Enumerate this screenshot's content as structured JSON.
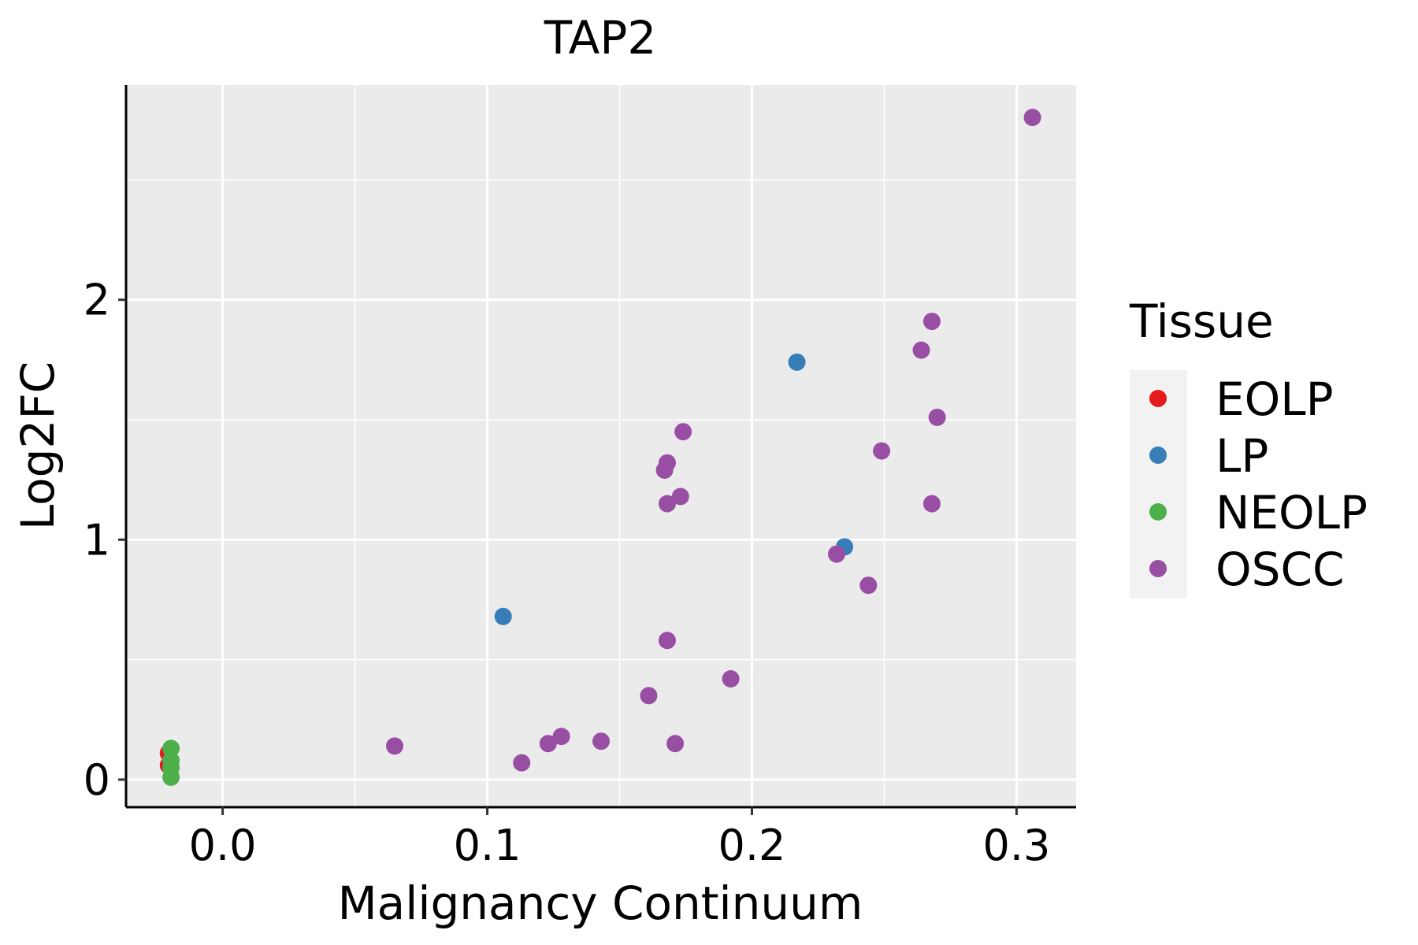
{
  "chart_data": {
    "type": "scatter",
    "title": "TAP2",
    "xlabel": "Malignancy Continuum",
    "ylabel": "Log2FC",
    "xlim": [
      -0.0365,
      0.3225
    ],
    "ylim": [
      -0.115,
      2.895
    ],
    "x_ticks": [
      0.0,
      0.1,
      0.2,
      0.3
    ],
    "x_tick_labels": [
      "0.0",
      "0.1",
      "0.2",
      "0.3"
    ],
    "x_minor": [
      0.05,
      0.15,
      0.25
    ],
    "y_ticks": [
      0,
      1,
      2
    ],
    "y_tick_labels": [
      "0",
      "1",
      "2"
    ],
    "y_minor": [
      0.5,
      1.5,
      2.5
    ],
    "grid": true,
    "background": "#EBEBEB",
    "legend": {
      "title": "Tissue",
      "placement": "right",
      "entries": [
        {
          "label": "EOLP",
          "color": "#E41A1C"
        },
        {
          "label": "LP",
          "color": "#377EB8"
        },
        {
          "label": "NEOLP",
          "color": "#4DAF4A"
        },
        {
          "label": "OSCC",
          "color": "#984EA3"
        }
      ]
    },
    "series": [
      {
        "name": "EOLP",
        "color": "#E41A1C",
        "points": [
          [
            -0.0205,
            0.11
          ],
          [
            -0.0205,
            0.06
          ]
        ]
      },
      {
        "name": "LP",
        "color": "#377EB8",
        "points": [
          [
            0.106,
            0.68
          ],
          [
            0.217,
            1.74
          ],
          [
            0.235,
            0.97
          ]
        ]
      },
      {
        "name": "NEOLP",
        "color": "#4DAF4A",
        "points": [
          [
            -0.0195,
            0.13
          ],
          [
            -0.0195,
            0.08
          ],
          [
            -0.0195,
            0.05
          ],
          [
            -0.0195,
            0.01
          ]
        ]
      },
      {
        "name": "OSCC",
        "color": "#984EA3",
        "points": [
          [
            0.065,
            0.14
          ],
          [
            0.113,
            0.07
          ],
          [
            0.123,
            0.15
          ],
          [
            0.128,
            0.18
          ],
          [
            0.143,
            0.16
          ],
          [
            0.161,
            0.35
          ],
          [
            0.168,
            0.58
          ],
          [
            0.171,
            0.15
          ],
          [
            0.192,
            0.42
          ],
          [
            0.167,
            1.29
          ],
          [
            0.168,
            1.32
          ],
          [
            0.168,
            1.15
          ],
          [
            0.173,
            1.18
          ],
          [
            0.174,
            1.45
          ],
          [
            0.232,
            0.94
          ],
          [
            0.244,
            0.81
          ],
          [
            0.249,
            1.37
          ],
          [
            0.264,
            1.79
          ],
          [
            0.268,
            1.91
          ],
          [
            0.268,
            1.15
          ],
          [
            0.27,
            1.51
          ],
          [
            0.306,
            2.76
          ]
        ]
      }
    ]
  }
}
